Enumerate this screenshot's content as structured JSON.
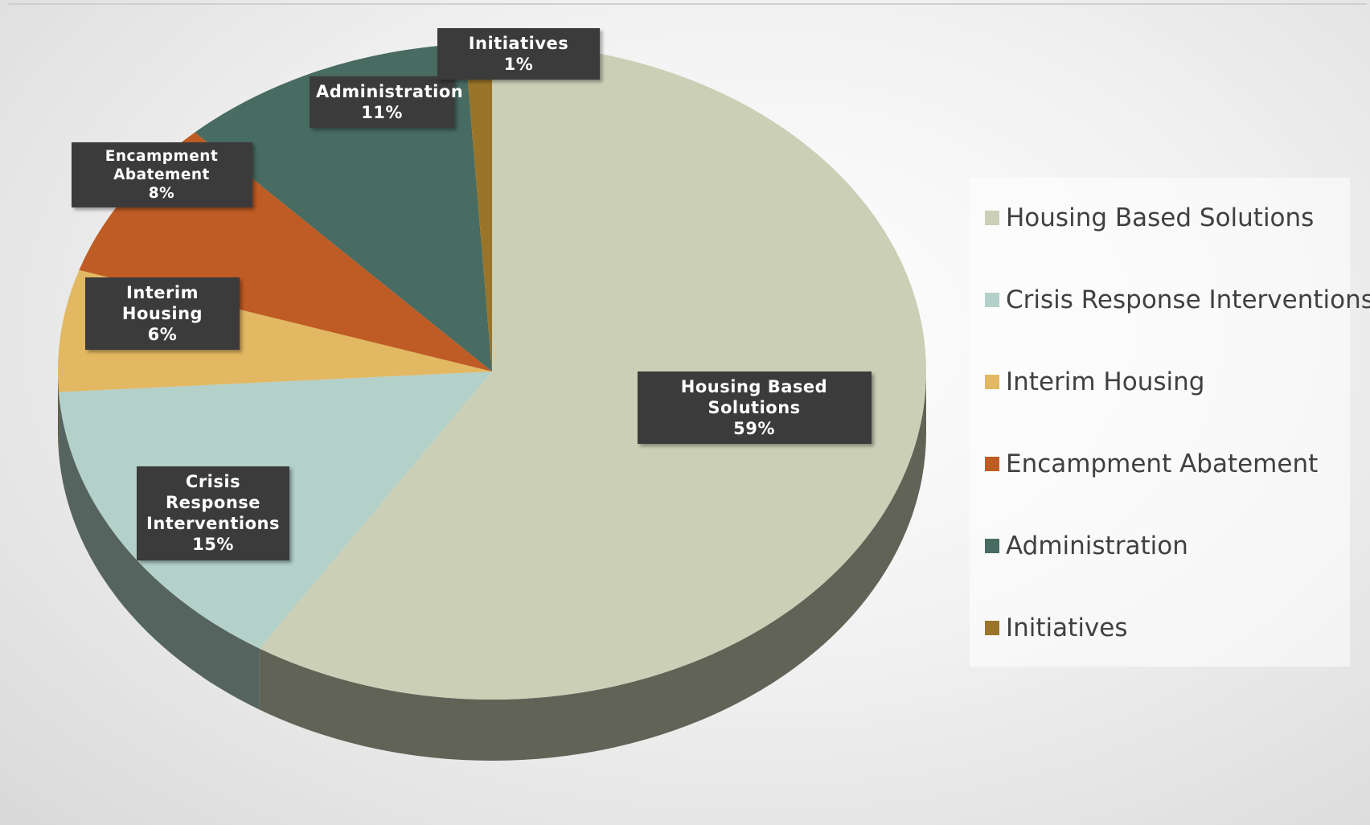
{
  "chart_data": {
    "type": "pie",
    "categories": [
      "Housing Based Solutions",
      "Crisis Response Interventions",
      "Interim Housing",
      "Encampment Abatement",
      "Administration",
      "Initiatives"
    ],
    "values": [
      59,
      15,
      6,
      8,
      11,
      1
    ],
    "value_labels": [
      "59%",
      "15%",
      "6%",
      "8%",
      "11%",
      "1%"
    ],
    "colors": [
      "#cbcfb5",
      "#b3d0c9",
      "#e3b862",
      "#bf5b24",
      "#486b62",
      "#9a7428"
    ],
    "legend": "right"
  }
}
